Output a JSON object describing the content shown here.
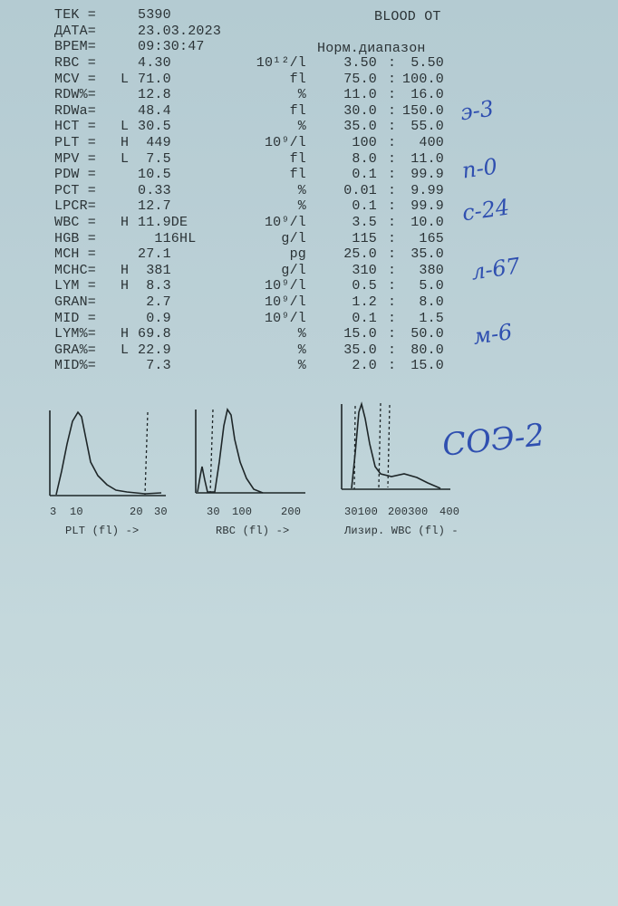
{
  "header": {
    "tek_label": "TEK =",
    "tek_value": "5390",
    "date_label": "ДАТА=",
    "date_value": "23.03.2023",
    "time_label": "ВРЕМ=",
    "time_value": "09:30:47",
    "blood_label": "BLOOD OT",
    "range_header": "Норм.диапазон"
  },
  "results": [
    {
      "label": "RBC =",
      "flag": "",
      "value": "4.30",
      "unit": "10¹²/l",
      "low": "3.50",
      "high": "5.50"
    },
    {
      "label": "MCV =",
      "flag": "L",
      "value": "71.0",
      "unit": "fl",
      "low": "75.0",
      "high": "100.0"
    },
    {
      "label": "RDW%=",
      "flag": "",
      "value": "12.8",
      "unit": "%",
      "low": "11.0",
      "high": "16.0"
    },
    {
      "label": "RDWa=",
      "flag": "",
      "value": "48.4",
      "unit": "fl",
      "low": "30.0",
      "high": "150.0"
    },
    {
      "label": "HCT =",
      "flag": "L",
      "value": "30.5",
      "unit": "%",
      "low": "35.0",
      "high": "55.0"
    },
    {
      "label": "PLT =",
      "flag": "H",
      "value": " 449",
      "unit": "10⁹/l",
      "low": "100",
      "high": "400"
    },
    {
      "label": "MPV =",
      "flag": "L",
      "value": " 7.5",
      "unit": "fl",
      "low": "8.0",
      "high": "11.0"
    },
    {
      "label": "PDW =",
      "flag": "",
      "value": "10.5",
      "unit": "fl",
      "low": "0.1",
      "high": "99.9"
    },
    {
      "label": "PCT =",
      "flag": "",
      "value": "0.33",
      "unit": "%",
      "low": "0.01",
      "high": "9.99"
    },
    {
      "label": "LPCR=",
      "flag": "",
      "value": "12.7",
      "unit": "%",
      "low": "0.1",
      "high": "99.9"
    },
    {
      "label": "WBC =",
      "flag": "H",
      "value": "11.9DE",
      "unit": "10⁹/l",
      "low": "3.5",
      "high": "10.0"
    },
    {
      "label": "HGB =",
      "flag": "",
      "value": "  116HL",
      "unit": "g/l",
      "low": "115",
      "high": "165"
    },
    {
      "label": "MCH =",
      "flag": "",
      "value": "27.1",
      "unit": "pg",
      "low": "25.0",
      "high": "35.0"
    },
    {
      "label": "MCHC=",
      "flag": "H",
      "value": " 381",
      "unit": "g/l",
      "low": "310",
      "high": "380"
    },
    {
      "label": "LYM =",
      "flag": "H",
      "value": " 8.3",
      "unit": "10⁹/l",
      "low": "0.5",
      "high": "5.0"
    },
    {
      "label": "GRAN=",
      "flag": "",
      "value": " 2.7",
      "unit": "10⁹/l",
      "low": "1.2",
      "high": "8.0"
    },
    {
      "label": "MID =",
      "flag": "",
      "value": " 0.9",
      "unit": "10⁹/l",
      "low": "0.1",
      "high": "1.5"
    },
    {
      "label": "LYM%=",
      "flag": "H",
      "value": "69.8",
      "unit": "%",
      "low": "15.0",
      "high": "50.0"
    },
    {
      "label": "GRA%=",
      "flag": "L",
      "value": "22.9",
      "unit": "%",
      "low": "35.0",
      "high": "80.0"
    },
    {
      "label": "MID%=",
      "flag": "",
      "value": " 7.3",
      "unit": "%",
      "low": "2.0",
      "high": "15.0"
    }
  ],
  "colon": ":",
  "histograms": [
    {
      "caption": "PLT (fl) ->",
      "ticks": [
        "3",
        "10",
        "20",
        "30"
      ]
    },
    {
      "caption": "RBC (fl) ->",
      "ticks": [
        "30",
        "100",
        "200"
      ]
    },
    {
      "caption": "Лизир. WBC (fl) -",
      "ticks": [
        "30100",
        "200300",
        "400"
      ]
    }
  ],
  "handwritten": [
    "э-3",
    "п-0",
    "с-24",
    "л-67",
    "м-6",
    "СОЭ-2"
  ],
  "colors": {
    "paper": "#bcd1d7",
    "ink": "#2b3336",
    "pen": "#2f4fb0"
  }
}
